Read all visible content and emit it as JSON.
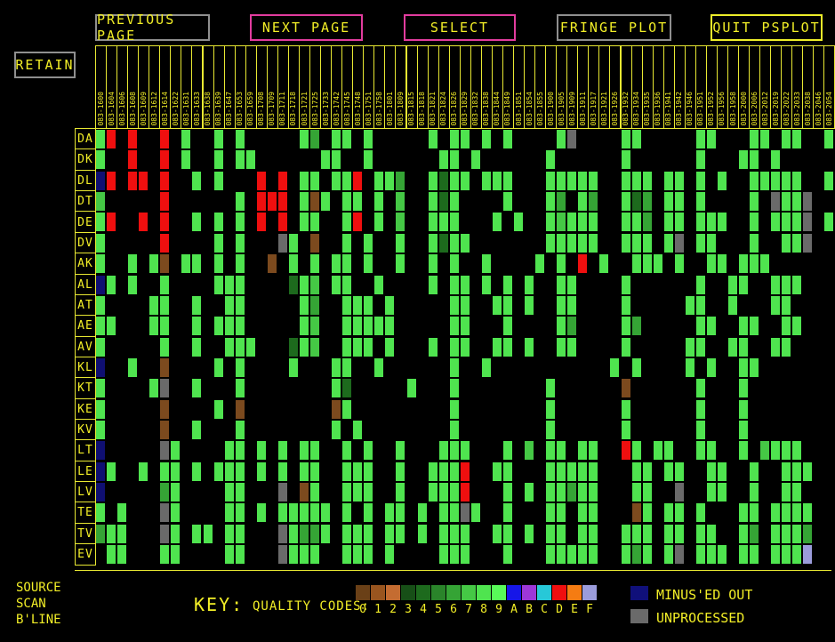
{
  "toolbar": {
    "buttons": [
      {
        "label": "PREVIOUS PAGE",
        "border": "gray"
      },
      {
        "label": "NEXT PAGE",
        "border": "magenta"
      },
      {
        "label": "SELECT",
        "border": "magenta"
      },
      {
        "label": "FRINGE PLOT",
        "border": "gray"
      },
      {
        "label": "QUIT PSPLOT",
        "border": "yellow"
      }
    ],
    "retain_label": "RETAIN"
  },
  "colors": {
    "accent_yellow": "#f2ee27",
    "border_gray": "#8f8f8f",
    "border_magenta": "#e23c9e",
    "cell_map": {
      "9": "#4fe44f",
      "8": "#45c845",
      "7": "#35a435",
      "4": "#1d6a1d",
      "r": "#ef0f0f",
      "b": "#0f0f72",
      "n": "#7c4a1e",
      "g": "#6a6a6a",
      "f": "#9b9cdb"
    }
  },
  "grid": {
    "col_headers": [
      "083-1600",
      "083-1604",
      "083-1606",
      "083-1608",
      "083-1609",
      "083-1612",
      "083-1614",
      "083-1622",
      "083-1631",
      "083-1633",
      "083-1638",
      "083-1639",
      "083-1647",
      "083-1653",
      "083-1659",
      "083-1708",
      "083-1709",
      "083-1711",
      "083-1718",
      "083-1721",
      "083-1725",
      "083-1733",
      "083-1742",
      "083-1745",
      "083-1748",
      "083-1751",
      "083-1758",
      "083-1801",
      "083-1809",
      "083-1815",
      "083-1818",
      "083-1821",
      "083-1824",
      "083-1826",
      "083-1829",
      "083-1832",
      "083-1838",
      "083-1844",
      "083-1849",
      "083-1851",
      "083-1854",
      "083-1855",
      "083-1900",
      "083-1905",
      "083-1909",
      "083-1911",
      "083-1917",
      "083-1921",
      "083-1926",
      "083-1932",
      "083-1934",
      "083-1935",
      "083-1936",
      "083-1941",
      "083-1942",
      "083-1946",
      "083-1951",
      "083-1952",
      "083-1956",
      "083-1958",
      "083-2000",
      "083-2006",
      "083-2012",
      "083-2019",
      "083-2022",
      "083-2033",
      "083-2038",
      "083-2046",
      "083-2054"
    ],
    "rows": [
      {
        "label": "DA",
        "cells": "9r.r..r.9..9.9.....97.99.9.....9.99.9.9....9g....99.....99...99.99..9"
      },
      {
        "label": "DK",
        "cells": "9..r..r.9..9.99......99..9......99.9......9......9......9...99.9....."
      },
      {
        "label": "DL",
        "cells": "br.rr.r..9.9...r.r.99.99r.997..9499.999...99999..999.99.9.9..99999..9"
      },
      {
        "label": "DT",
        "cells": "8.....r......9.rrr.9n9.99.9.8..949....9...97.97..947.99.9....9.g99g.."
      },
      {
        "label": "DE",
        "cells": "9r..r.r..9.9.9.r.r.99..9r.9.8..999...9.9..98999..997.99.999..9.999g.9"
      },
      {
        "label": "DV",
        "cells": "9.....r....9.9...g9.n..9.9..9..9499.......99999..999.9g.99...9..99g.."
      },
      {
        "label": "AK",
        "cells": "9..9.9n.99.9.9..n.9.9.99.9..9..9.9..9....9.9.r.9..999.9..99.999......"
      },
      {
        "label": "AL",
        "cells": "b9.9..9....999....498.99..9....9.99.9.9.9..99....9......9..99..999..."
      },
      {
        "label": "AT",
        "cells": "9....99..9..99.....97..999.9.....99..99.9..99....9.....99..9...99...."
      },
      {
        "label": "AE",
        "cells": "99...99..9.999.....98..99999.....99...9....97....97.....99..99..99..."
      },
      {
        "label": "AV",
        "cells": "9.....9..9..999...498..999.9...9.99..99.9..99....9.....99..99..99...."
      },
      {
        "label": "KL",
        "cells": "b..9..n....9.9....9...99..9......9..9...........9.9....9.9..99......."
      },
      {
        "label": "KT",
        "cells": "9....9g..9...9........94.....9...9........9......n......9...9........"
      },
      {
        "label": "KE",
        "cells": "9.....n....9.n........n9.........9........9......9......9...9........"
      },
      {
        "label": "KV",
        "cells": "9.....n..9...9........9.9........9........9......9......9...9........"
      },
      {
        "label": "LT",
        "cells": "b.....g9....99.9.9.99..9.9..9...999...9.8.99.99..r9.99..99..9.8999..."
      },
      {
        "label": "LE",
        "cells": "b9..9.99.9.999.9.9.99..999..9..999r..99...99999...99.99..99..9..999.."
      },
      {
        "label": "LV",
        "cells": "b.....79....99...g.n9..999..9..999r...9.9.99799...99..g..99..9..99..."
      },
      {
        "label": "TE",
        "cells": "9.9...g9....99.9.99999.9.9.99.9.99g9..9...99.99...n9.99.9...99.9999.."
      },
      {
        "label": "TV",
        "cells": "799...g9.99.99...g9779.999.99.9.999..99.9.99.99..999.99.99..97.9997.."
      },
      {
        "label": "EV",
        "cells": ".99...99....99...g999..999.9....999...9...99999..979.9g.999.99.999f.."
      }
    ]
  },
  "footer": {
    "source_lines": [
      "SOURCE",
      "SCAN",
      "B'LINE"
    ],
    "key_label": "KEY:",
    "quality_label": "QUALITY CODES:",
    "codes": [
      "0",
      "1",
      "2",
      "3",
      "4",
      "5",
      "6",
      "7",
      "8",
      "9",
      "A",
      "B",
      "C",
      "D",
      "E",
      "F"
    ],
    "code_colors": [
      "#6a4017",
      "#99551f",
      "#c46c31",
      "#174f17",
      "#1d6a1d",
      "#2a842a",
      "#35a435",
      "#45c845",
      "#4fe44f",
      "#58fa58",
      "#1616e8",
      "#9d37d8",
      "#27c8d8",
      "#ef0f0f",
      "#f57c12",
      "#9b9cdb"
    ],
    "minused": {
      "label": "MINUS'ED OUT",
      "color": "#10107a"
    },
    "unprocessed": {
      "label": "UNPROCESSED",
      "color": "#6a6a6a"
    }
  }
}
